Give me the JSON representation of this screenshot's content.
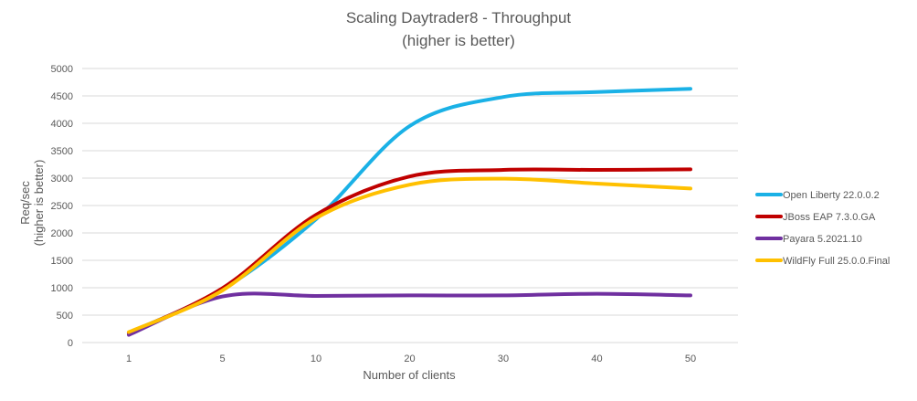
{
  "chart_data": {
    "type": "line",
    "title": "Scaling Daytrader8 - Throughput",
    "subtitle": "(higher is better)",
    "xlabel": "Number of clients",
    "ylabel": "Req/sec",
    "ylabel_sub": "(higher is better)",
    "categories": [
      "1",
      "5",
      "10",
      "20",
      "30",
      "40",
      "50"
    ],
    "ylim": [
      0,
      5000
    ],
    "yticks": [
      0,
      500,
      1000,
      1500,
      2000,
      2500,
      3000,
      3500,
      4000,
      4500,
      5000
    ],
    "grid": true,
    "legend_position": "right",
    "series": [
      {
        "name": "Open Liberty 22.0.0.2",
        "color": "#1ab1e6",
        "values": [
          180,
          970,
          2250,
          3950,
          4480,
          4570,
          4630
        ]
      },
      {
        "name": "JBoss EAP 7.3.0.GA",
        "color": "#c00000",
        "values": [
          170,
          990,
          2330,
          3030,
          3150,
          3150,
          3160
        ]
      },
      {
        "name": "Payara 5.2021.10",
        "color": "#7030a0",
        "values": [
          140,
          840,
          850,
          860,
          860,
          890,
          860
        ]
      },
      {
        "name": "WildFly Full 25.0.0.Final",
        "color": "#ffc000",
        "values": [
          190,
          950,
          2270,
          2880,
          2990,
          2900,
          2810
        ]
      }
    ]
  }
}
